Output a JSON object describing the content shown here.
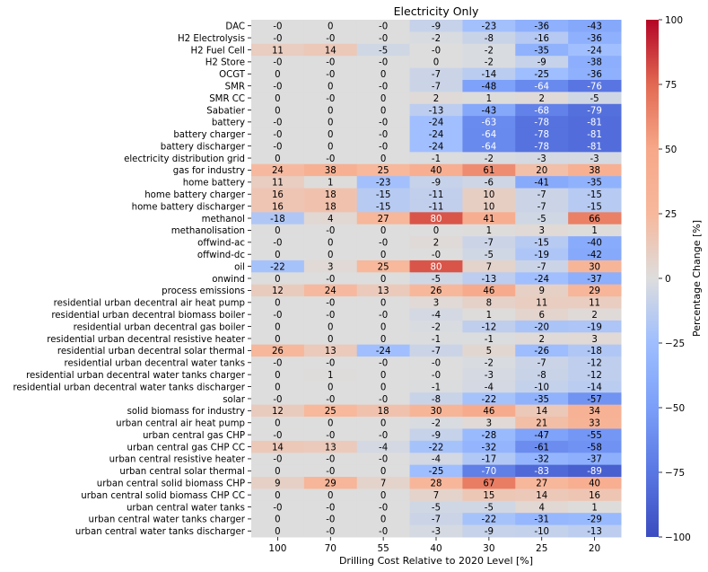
{
  "chart_data": {
    "type": "heatmap",
    "title": "Electricity Only",
    "xlabel": "Drilling Cost Relative to 2020 Level [%]",
    "ylabel": "",
    "colorbar_label": "Percentage Change [%]",
    "colorbar_range": [
      -100,
      100
    ],
    "colorbar_ticks": [
      "100",
      "75",
      "50",
      "25",
      "0",
      "−25",
      "−50",
      "−75",
      "−100"
    ],
    "colorbar_tick_values": [
      100,
      75,
      50,
      25,
      0,
      -25,
      -50,
      -75,
      -100
    ],
    "colormap": "coolwarm",
    "columns": [
      "100",
      "70",
      "55",
      "40",
      "30",
      "25",
      "20"
    ],
    "rows": [
      {
        "label": "DAC",
        "values": [
          0,
          0,
          0,
          -9,
          -23,
          -36,
          -43
        ],
        "text": [
          "-0",
          "0",
          "-0",
          "-9",
          "-23",
          "-36",
          "-43"
        ]
      },
      {
        "label": "H2 Electrolysis",
        "values": [
          0,
          0,
          0,
          -2,
          -8,
          -16,
          -36
        ],
        "text": [
          "-0",
          "-0",
          "-0",
          "-2",
          "-8",
          "-16",
          "-36"
        ]
      },
      {
        "label": "H2 Fuel Cell",
        "values": [
          11,
          14,
          -5,
          0,
          -2,
          -35,
          -24
        ],
        "text": [
          "11",
          "14",
          "-5",
          "-0",
          "-2",
          "-35",
          "-24"
        ]
      },
      {
        "label": "H2 Store",
        "values": [
          0,
          0,
          0,
          0,
          -2,
          -9,
          -38
        ],
        "text": [
          "-0",
          "-0",
          "-0",
          "0",
          "-2",
          "-9",
          "-38"
        ]
      },
      {
        "label": "OCGT",
        "values": [
          0,
          0,
          0,
          -7,
          -14,
          -25,
          -36
        ],
        "text": [
          "0",
          "-0",
          "0",
          "-7",
          "-14",
          "-25",
          "-36"
        ]
      },
      {
        "label": "SMR",
        "values": [
          0,
          0,
          0,
          -7,
          -48,
          -64,
          -76
        ],
        "text": [
          "-0",
          "0",
          "-0",
          "-7",
          "-48",
          "-64",
          "-76"
        ]
      },
      {
        "label": "SMR CC",
        "values": [
          0,
          0,
          0,
          2,
          1,
          2,
          -5
        ],
        "text": [
          "0",
          "-0",
          "0",
          "2",
          "1",
          "2",
          "-5"
        ]
      },
      {
        "label": "Sabatier",
        "values": [
          0,
          0,
          0,
          -13,
          -43,
          -68,
          -79
        ],
        "text": [
          "0",
          "0",
          "0",
          "-13",
          "-43",
          "-68",
          "-79"
        ]
      },
      {
        "label": "battery",
        "values": [
          0,
          0,
          0,
          -24,
          -63,
          -78,
          -81
        ],
        "text": [
          "-0",
          "0",
          "-0",
          "-24",
          "-63",
          "-78",
          "-81"
        ]
      },
      {
        "label": "battery charger",
        "values": [
          0,
          0,
          0,
          -24,
          -64,
          -78,
          -81
        ],
        "text": [
          "-0",
          "0",
          "-0",
          "-24",
          "-64",
          "-78",
          "-81"
        ]
      },
      {
        "label": "battery discharger",
        "values": [
          0,
          0,
          0,
          -24,
          -64,
          -78,
          -81
        ],
        "text": [
          "-0",
          "0",
          "-0",
          "-24",
          "-64",
          "-78",
          "-81"
        ]
      },
      {
        "label": "electricity distribution grid",
        "values": [
          0,
          0,
          0,
          -1,
          -2,
          -3,
          -3
        ],
        "text": [
          "0",
          "-0",
          "0",
          "-1",
          "-2",
          "-3",
          "-3"
        ]
      },
      {
        "label": "gas for industry",
        "values": [
          24,
          38,
          25,
          40,
          61,
          20,
          38
        ],
        "text": [
          "24",
          "38",
          "25",
          "40",
          "61",
          "20",
          "38"
        ]
      },
      {
        "label": "home battery",
        "values": [
          11,
          1,
          -23,
          -9,
          -6,
          -41,
          -35
        ],
        "text": [
          "11",
          "1",
          "-23",
          "-9",
          "-6",
          "-41",
          "-35"
        ]
      },
      {
        "label": "home battery charger",
        "values": [
          16,
          18,
          -15,
          -11,
          10,
          -7,
          -15
        ],
        "text": [
          "16",
          "18",
          "-15",
          "-11",
          "10",
          "-7",
          "-15"
        ]
      },
      {
        "label": "home battery discharger",
        "values": [
          16,
          18,
          -15,
          -11,
          10,
          -7,
          -15
        ],
        "text": [
          "16",
          "18",
          "-15",
          "-11",
          "10",
          "-7",
          "-15"
        ]
      },
      {
        "label": "methanol",
        "values": [
          -18,
          4,
          27,
          80,
          41,
          -5,
          66
        ],
        "text": [
          "-18",
          "4",
          "27",
          "80",
          "41",
          "-5",
          "66"
        ]
      },
      {
        "label": "methanolisation",
        "values": [
          0,
          0,
          0,
          0,
          1,
          3,
          1
        ],
        "text": [
          "0",
          "-0",
          "0",
          "0",
          "1",
          "3",
          "1"
        ]
      },
      {
        "label": "offwind-ac",
        "values": [
          0,
          0,
          0,
          2,
          -7,
          -15,
          -40
        ],
        "text": [
          "-0",
          "0",
          "-0",
          "2",
          "-7",
          "-15",
          "-40"
        ]
      },
      {
        "label": "offwind-dc",
        "values": [
          0,
          0,
          0,
          0,
          -5,
          -19,
          -42
        ],
        "text": [
          "0",
          "0",
          "0",
          "-0",
          "-5",
          "-19",
          "-42"
        ]
      },
      {
        "label": "oil",
        "values": [
          -22,
          3,
          25,
          80,
          7,
          -7,
          30
        ],
        "text": [
          "-22",
          "3",
          "25",
          "80",
          "7",
          "-7",
          "30"
        ]
      },
      {
        "label": "onwind",
        "values": [
          0,
          0,
          0,
          -5,
          -13,
          -24,
          -37
        ],
        "text": [
          "0",
          "-0",
          "0",
          "-5",
          "-13",
          "-24",
          "-37"
        ]
      },
      {
        "label": "process emissions",
        "values": [
          12,
          24,
          13,
          26,
          46,
          9,
          29
        ],
        "text": [
          "12",
          "24",
          "13",
          "26",
          "46",
          "9",
          "29"
        ]
      },
      {
        "label": "residential urban decentral air heat pump",
        "values": [
          0,
          0,
          0,
          3,
          8,
          11,
          11
        ],
        "text": [
          "0",
          "-0",
          "0",
          "3",
          "8",
          "11",
          "11"
        ]
      },
      {
        "label": "residential urban decentral biomass boiler",
        "values": [
          0,
          0,
          0,
          -4,
          1,
          6,
          2
        ],
        "text": [
          "-0",
          "-0",
          "-0",
          "-4",
          "1",
          "6",
          "2"
        ]
      },
      {
        "label": "residential urban decentral gas boiler",
        "values": [
          0,
          0,
          0,
          -2,
          -12,
          -20,
          -19
        ],
        "text": [
          "0",
          "0",
          "0",
          "-2",
          "-12",
          "-20",
          "-19"
        ]
      },
      {
        "label": "residential urban decentral resistive heater",
        "values": [
          0,
          0,
          0,
          -1,
          -1,
          2,
          3
        ],
        "text": [
          "0",
          "0",
          "0",
          "-1",
          "-1",
          "2",
          "3"
        ]
      },
      {
        "label": "residential urban decentral solar thermal",
        "values": [
          26,
          13,
          -24,
          -7,
          5,
          -26,
          -18
        ],
        "text": [
          "26",
          "13",
          "-24",
          "-7",
          "5",
          "-26",
          "-18"
        ]
      },
      {
        "label": "residential urban decentral water tanks",
        "values": [
          0,
          0,
          0,
          0,
          -2,
          -7,
          -12
        ],
        "text": [
          "-0",
          "-0",
          "-0",
          "-0",
          "-2",
          "-7",
          "-12"
        ]
      },
      {
        "label": "residential urban decentral water tanks charger",
        "values": [
          0,
          1,
          0,
          0,
          -3,
          -8,
          -12
        ],
        "text": [
          "0",
          "1",
          "0",
          "-0",
          "-3",
          "-8",
          "-12"
        ]
      },
      {
        "label": "residential urban decentral water tanks discharger",
        "values": [
          0,
          0,
          0,
          -1,
          -4,
          -10,
          -14
        ],
        "text": [
          "0",
          "0",
          "0",
          "-1",
          "-4",
          "-10",
          "-14"
        ]
      },
      {
        "label": "solar",
        "values": [
          0,
          0,
          0,
          -8,
          -22,
          -35,
          -57
        ],
        "text": [
          "-0",
          "-0",
          "-0",
          "-8",
          "-22",
          "-35",
          "-57"
        ]
      },
      {
        "label": "solid biomass for industry",
        "values": [
          12,
          25,
          18,
          30,
          46,
          14,
          34
        ],
        "text": [
          "12",
          "25",
          "18",
          "30",
          "46",
          "14",
          "34"
        ]
      },
      {
        "label": "urban central air heat pump",
        "values": [
          0,
          0,
          0,
          -2,
          3,
          21,
          33
        ],
        "text": [
          "0",
          "0",
          "0",
          "-2",
          "3",
          "21",
          "33"
        ]
      },
      {
        "label": "urban central gas CHP",
        "values": [
          0,
          0,
          0,
          -9,
          -28,
          -47,
          -55
        ],
        "text": [
          "-0",
          "-0",
          "-0",
          "-9",
          "-28",
          "-47",
          "-55"
        ]
      },
      {
        "label": "urban central gas CHP CC",
        "values": [
          14,
          13,
          -4,
          -22,
          -32,
          -61,
          -58
        ],
        "text": [
          "14",
          "13",
          "-4",
          "-22",
          "-32",
          "-61",
          "-58"
        ]
      },
      {
        "label": "urban central resistive heater",
        "values": [
          0,
          0,
          0,
          -4,
          -17,
          -32,
          -37
        ],
        "text": [
          "-0",
          "-0",
          "-0",
          "-4",
          "-17",
          "-32",
          "-37"
        ]
      },
      {
        "label": "urban central solar thermal",
        "values": [
          0,
          0,
          0,
          -25,
          -70,
          -83,
          -89
        ],
        "text": [
          "0",
          "-0",
          "0",
          "-25",
          "-70",
          "-83",
          "-89"
        ]
      },
      {
        "label": "urban central solid biomass CHP",
        "values": [
          9,
          29,
          7,
          28,
          67,
          27,
          40
        ],
        "text": [
          "9",
          "29",
          "7",
          "28",
          "67",
          "27",
          "40"
        ]
      },
      {
        "label": "urban central solid biomass CHP CC",
        "values": [
          0,
          0,
          0,
          7,
          15,
          14,
          16
        ],
        "text": [
          "0",
          "0",
          "0",
          "7",
          "15",
          "14",
          "16"
        ]
      },
      {
        "label": "urban central water tanks",
        "values": [
          0,
          0,
          0,
          -5,
          -5,
          4,
          1
        ],
        "text": [
          "-0",
          "-0",
          "-0",
          "-5",
          "-5",
          "4",
          "1"
        ]
      },
      {
        "label": "urban central water tanks charger",
        "values": [
          0,
          0,
          0,
          -7,
          -22,
          -31,
          -29
        ],
        "text": [
          "0",
          "-0",
          "0",
          "-7",
          "-22",
          "-31",
          "-29"
        ]
      },
      {
        "label": "urban central water tanks discharger",
        "values": [
          0,
          0,
          0,
          -3,
          -9,
          -10,
          -13
        ],
        "text": [
          "0",
          "-0",
          "-0",
          "-3",
          "-9",
          "-10",
          "-13"
        ]
      }
    ]
  }
}
